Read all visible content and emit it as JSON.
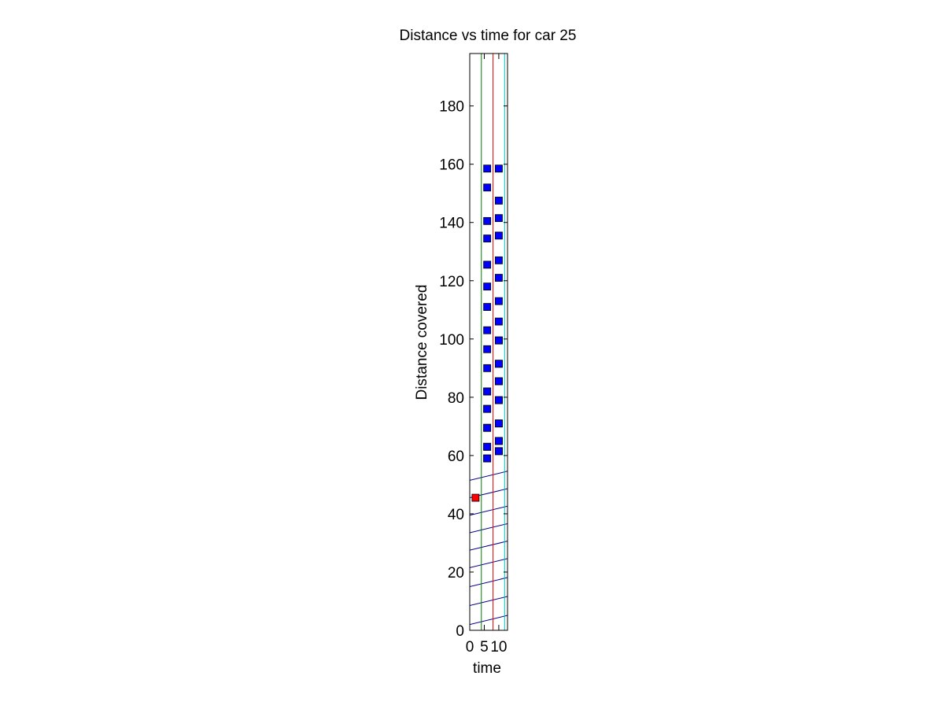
{
  "chart_data": {
    "type": "scatter",
    "title": "Distance vs time for car 25",
    "xlabel": "time",
    "ylabel": "Distance covered",
    "xlim": [
      0,
      13
    ],
    "ylim": [
      0,
      198
    ],
    "xticks": [
      0,
      5,
      10
    ],
    "yticks": [
      0,
      20,
      40,
      60,
      80,
      100,
      120,
      140,
      160,
      180
    ],
    "grid": false,
    "legend": "none",
    "vertical_lines": [
      {
        "x": 4,
        "color": "#008000"
      },
      {
        "x": 8,
        "color": "#ff0000"
      },
      {
        "x": 12,
        "color": "#00bfbf"
      }
    ],
    "trajectory_lines": {
      "color": "#00008b",
      "slope": 0.24,
      "start_y_at_x0": [
        2,
        8.5,
        15,
        21.5,
        27.5,
        33.5,
        39.5,
        45.5,
        51.5
      ],
      "x_range": [
        0,
        13
      ]
    },
    "series": [
      {
        "color": "#0000ff",
        "x": [
          6,
          6,
          6,
          6,
          6,
          6,
          6,
          6,
          6,
          6,
          6,
          6,
          6,
          6,
          6,
          6,
          6,
          6,
          6,
          6,
          10,
          10,
          10,
          10,
          10,
          10,
          10,
          10,
          10,
          10,
          10,
          10,
          10,
          10,
          10,
          10,
          10,
          10,
          10,
          10,
          10,
          10
        ],
        "y": [
          59,
          63,
          69.5,
          76,
          82,
          90,
          96.5,
          103,
          111,
          118,
          125.5,
          134.5,
          140.5,
          152,
          158.5,
          59,
          63,
          69.5,
          76,
          82,
          61.5,
          65,
          71,
          79,
          85.5,
          91.5,
          99.5,
          106,
          113,
          121,
          127,
          135.5,
          141.5,
          147.5,
          158.5,
          61.5,
          65,
          71,
          79,
          85.5,
          91.5,
          99.5
        ]
      },
      {
        "color": "#ff0000",
        "x": [
          2
        ],
        "y": [
          45.5
        ]
      }
    ]
  }
}
